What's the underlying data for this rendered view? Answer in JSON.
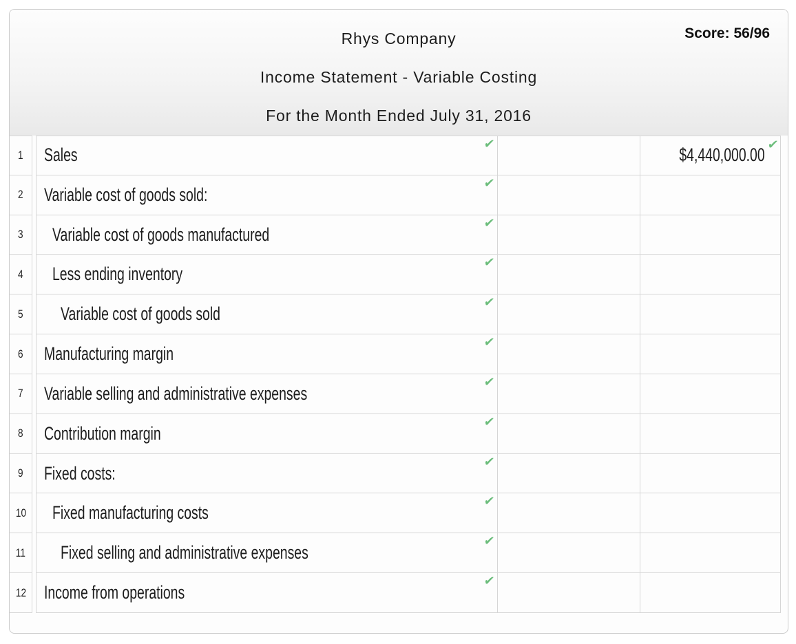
{
  "header": {
    "company": "Rhys Company",
    "statement_title": "Income Statement - Variable Costing",
    "period": "For the Month Ended July 31, 2016",
    "score_label": "Score: 56/96"
  },
  "icons": {
    "check_glyph": "✔",
    "check_meaning": "answer-correct"
  },
  "colors": {
    "check_green": "#6bbd7b",
    "grid_line": "#d6d6d6",
    "header_gradient_top": "#fdfdfd",
    "header_gradient_bottom": "#e9e9e9"
  },
  "table": {
    "columns": [
      "row_number",
      "description",
      "amount_1",
      "amount_2"
    ],
    "rows": [
      {
        "num": "1",
        "label": "Sales",
        "indent": 0,
        "label_check": true,
        "amount1": "",
        "amount2": "$4,440,000.00",
        "amount2_check": true
      },
      {
        "num": "2",
        "label": "Variable cost of goods sold:",
        "indent": 0,
        "label_check": true,
        "amount1": "",
        "amount2": "",
        "amount2_check": false
      },
      {
        "num": "3",
        "label": "Variable cost of goods manufactured",
        "indent": 1,
        "label_check": true,
        "amount1": "",
        "amount2": "",
        "amount2_check": false
      },
      {
        "num": "4",
        "label": "Less ending inventory",
        "indent": 1,
        "label_check": true,
        "amount1": "",
        "amount2": "",
        "amount2_check": false
      },
      {
        "num": "5",
        "label": "Variable cost of goods sold",
        "indent": 2,
        "label_check": true,
        "amount1": "",
        "amount2": "",
        "amount2_check": false
      },
      {
        "num": "6",
        "label": "Manufacturing margin",
        "indent": 0,
        "label_check": true,
        "amount1": "",
        "amount2": "",
        "amount2_check": false
      },
      {
        "num": "7",
        "label": "Variable selling and administrative expenses",
        "indent": 0,
        "label_check": true,
        "amount1": "",
        "amount2": "",
        "amount2_check": false
      },
      {
        "num": "8",
        "label": "Contribution margin",
        "indent": 0,
        "label_check": true,
        "amount1": "",
        "amount2": "",
        "amount2_check": false
      },
      {
        "num": "9",
        "label": "Fixed costs:",
        "indent": 0,
        "label_check": true,
        "amount1": "",
        "amount2": "",
        "amount2_check": false
      },
      {
        "num": "10",
        "label": "Fixed manufacturing costs",
        "indent": 1,
        "label_check": true,
        "amount1": "",
        "amount2": "",
        "amount2_check": false
      },
      {
        "num": "11",
        "label": "Fixed selling and administrative expenses",
        "indent": 2,
        "label_check": true,
        "amount1": "",
        "amount2": "",
        "amount2_check": false
      },
      {
        "num": "12",
        "label": "Income from operations",
        "indent": 0,
        "label_check": true,
        "amount1": "",
        "amount2": "",
        "amount2_check": false
      }
    ]
  }
}
